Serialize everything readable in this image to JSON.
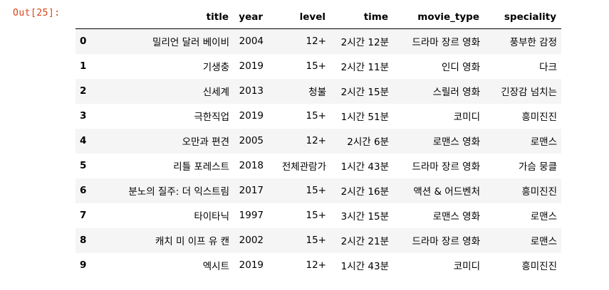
{
  "prompt": "Out[25]:",
  "columns": [
    "",
    "title",
    "year",
    "level",
    "time",
    "movie_type",
    "speciality"
  ],
  "rows": [
    {
      "index": "0",
      "title": "밀리언 달러 베이비",
      "year": "2004",
      "level": "12+",
      "time": "2시간 12분",
      "movie_type": "드라마 장르 영화",
      "speciality": "풍부한 감정"
    },
    {
      "index": "1",
      "title": "기생충",
      "year": "2019",
      "level": "15+",
      "time": "2시간 11분",
      "movie_type": "인디 영화",
      "speciality": "다크"
    },
    {
      "index": "2",
      "title": "신세계",
      "year": "2013",
      "level": "청불",
      "time": "2시간 15분",
      "movie_type": "스릴러 영화",
      "speciality": "긴장감 넘치는"
    },
    {
      "index": "3",
      "title": "극한직업",
      "year": "2019",
      "level": "15+",
      "time": "1시간 51분",
      "movie_type": "코미디",
      "speciality": "흥미진진"
    },
    {
      "index": "4",
      "title": "오만과 편견",
      "year": "2005",
      "level": "12+",
      "time": "2시간 6분",
      "movie_type": "로맨스 영화",
      "speciality": "로맨스"
    },
    {
      "index": "5",
      "title": "리틀 포레스트",
      "year": "2018",
      "level": "전체관람가",
      "time": "1시간 43분",
      "movie_type": "드라마 장르 영화",
      "speciality": "가슴 뭉클"
    },
    {
      "index": "6",
      "title": "분노의 질주: 더 익스트림",
      "year": "2017",
      "level": "15+",
      "time": "2시간 16분",
      "movie_type": "액션 & 어드벤처",
      "speciality": "흥미진진"
    },
    {
      "index": "7",
      "title": "타이타닉",
      "year": "1997",
      "level": "15+",
      "time": "3시간 15분",
      "movie_type": "로맨스 영화",
      "speciality": "로맨스"
    },
    {
      "index": "8",
      "title": "캐치 미 이프 유 캔",
      "year": "2002",
      "level": "15+",
      "time": "2시간 21분",
      "movie_type": "드라마 장르 영화",
      "speciality": "로맨스"
    },
    {
      "index": "9",
      "title": "엑시트",
      "year": "2019",
      "level": "12+",
      "time": "1시간 43분",
      "movie_type": "코미디",
      "speciality": "흥미진진"
    }
  ]
}
